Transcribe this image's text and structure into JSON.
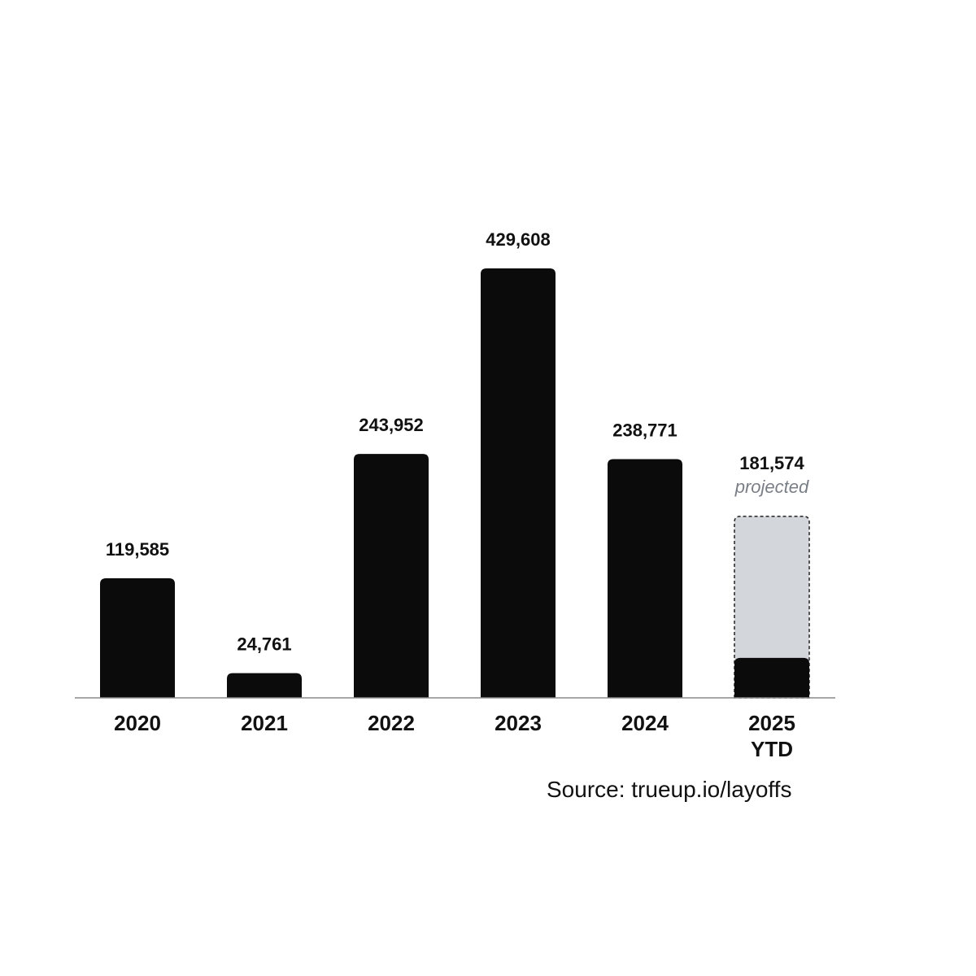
{
  "chart_data": {
    "type": "bar",
    "title": "",
    "xlabel": "",
    "ylabel": "",
    "ylim": [
      0,
      429608
    ],
    "grid": false,
    "categories": [
      "2020",
      "2021",
      "2022",
      "2023",
      "2024",
      "2025\nYTD"
    ],
    "category_lines": [
      [
        "2020"
      ],
      [
        "2021"
      ],
      [
        "2022"
      ],
      [
        "2023"
      ],
      [
        "2024"
      ],
      [
        "2025",
        "YTD"
      ]
    ],
    "values": [
      119585,
      24761,
      243952,
      429608,
      238771,
      181574
    ],
    "value_labels": [
      "119,585",
      "24,761",
      "243,952",
      "429,608",
      "238,771",
      "181,574"
    ],
    "projected_index": 5,
    "projected_note": "projected",
    "ytd_actual_value": 40000,
    "colors": {
      "bar": "#0b0b0c",
      "projected_fill": "#d3d6db",
      "projected_border": "#222222",
      "baseline": "#8a8a8a",
      "projected_text": "#7a7e86"
    }
  },
  "source": "Source: trueup.io/layoffs"
}
